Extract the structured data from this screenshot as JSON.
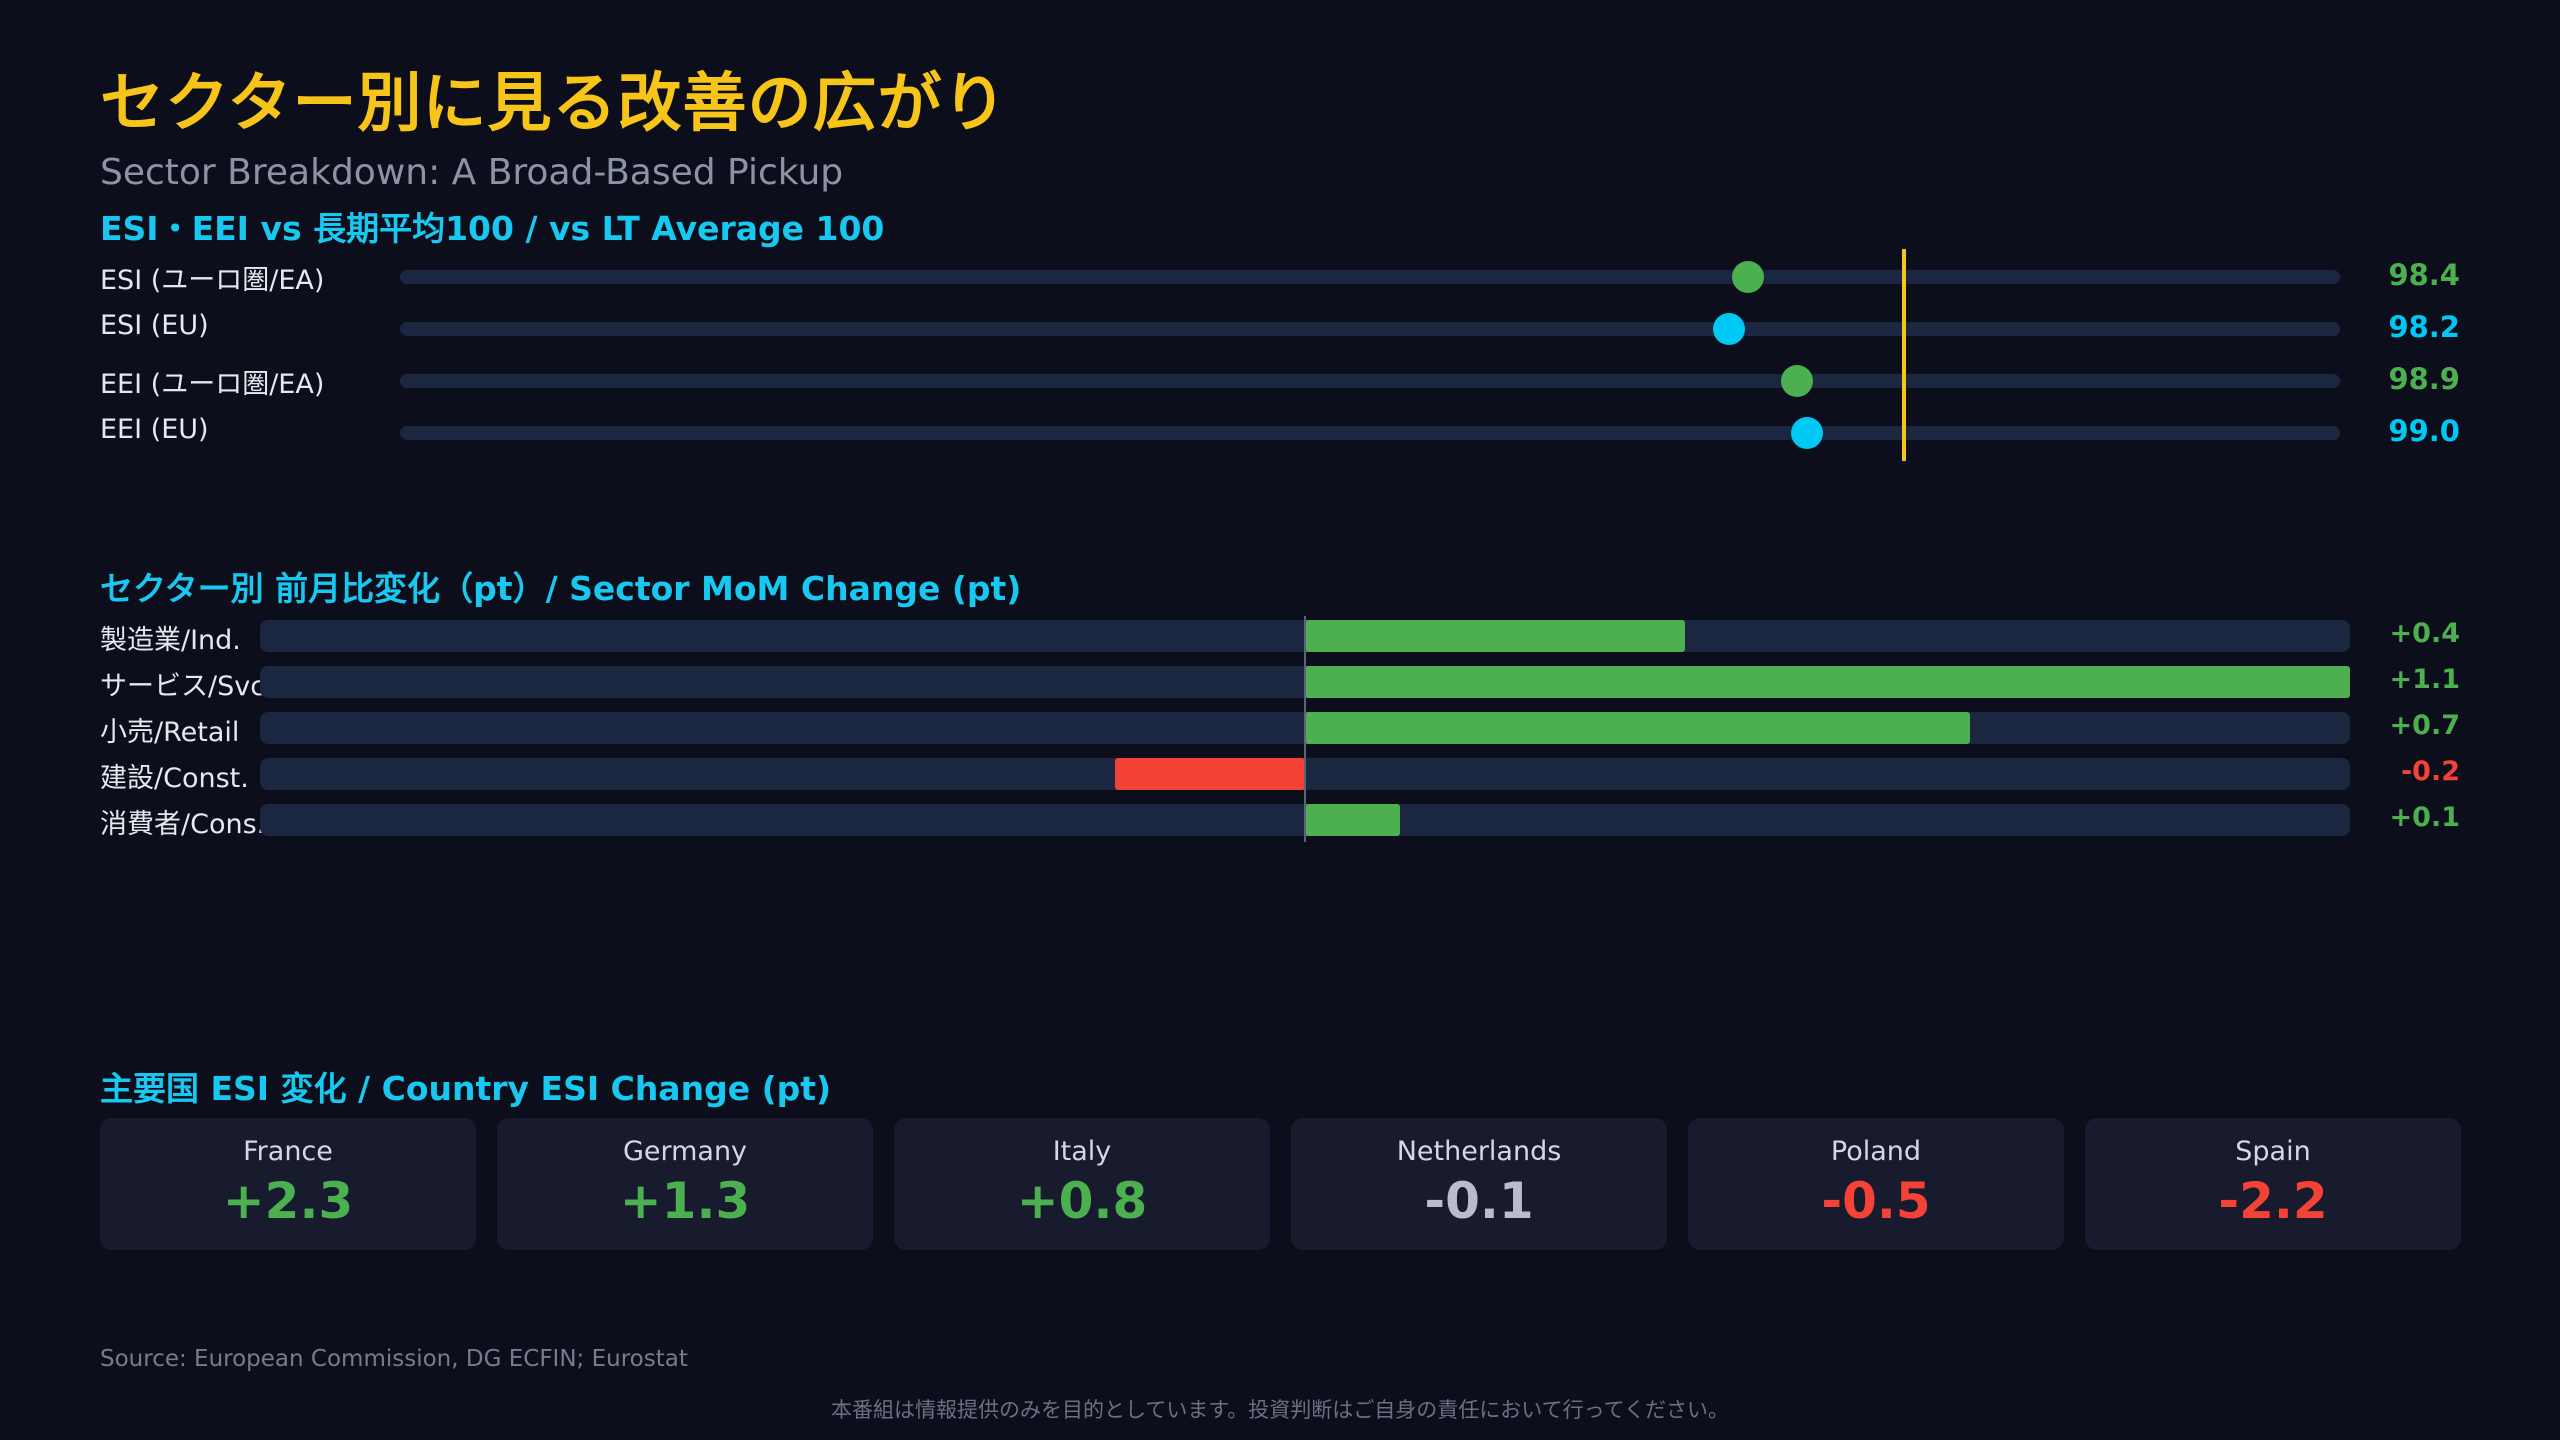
{
  "title": "セクター別に見る改善の広がり",
  "subtitle": "Sector Breakdown: A Broad-Based Pickup",
  "colors": {
    "green": "#4caf50",
    "cyan": "#00c8f5",
    "red": "#f44336",
    "neutral": "#b8bccc",
    "reference": "#f7c41a"
  },
  "chart_data": [
    {
      "type": "dot",
      "title": "ESI・EEI vs 長期平均100 / vs LT Average 100",
      "reference_value": 100,
      "xlim": [
        84.5,
        104.5
      ],
      "rows": [
        {
          "label": "ESI (ユーロ圏/EA)",
          "value": 98.4,
          "value_text": "98.4",
          "color": "#4caf50"
        },
        {
          "label": "ESI (EU)",
          "value": 98.2,
          "value_text": "98.2",
          "color": "#00c8f5"
        },
        {
          "label": "EEI (ユーロ圏/EA)",
          "value": 98.9,
          "value_text": "98.9",
          "color": "#4caf50"
        },
        {
          "label": "EEI (EU)",
          "value": 99.0,
          "value_text": "99.0",
          "color": "#00c8f5"
        }
      ]
    },
    {
      "type": "bar",
      "title": "セクター別 前月比変化（pt）/ Sector MoM Change (pt)",
      "xlim": [
        -1.1,
        1.1
      ],
      "categories": [
        "製造業/Ind.",
        "サービス/Svc",
        "小売/Retail",
        "建設/Const.",
        "消費者/Cons."
      ],
      "values": [
        0.4,
        1.1,
        0.7,
        -0.2,
        0.1
      ],
      "value_labels": [
        "+0.4",
        "+1.1",
        "+0.7",
        "-0.2",
        "+0.1"
      ]
    },
    {
      "type": "table",
      "title": "主要国 ESI 変化 / Country ESI Change (pt)",
      "countries": [
        {
          "name": "France",
          "value": 2.3,
          "value_text": "+2.3",
          "color": "#4caf50"
        },
        {
          "name": "Germany",
          "value": 1.3,
          "value_text": "+1.3",
          "color": "#4caf50"
        },
        {
          "name": "Italy",
          "value": 0.8,
          "value_text": "+0.8",
          "color": "#4caf50"
        },
        {
          "name": "Netherlands",
          "value": -0.1,
          "value_text": "-0.1",
          "color": "#b8bccc"
        },
        {
          "name": "Poland",
          "value": -0.5,
          "value_text": "-0.5",
          "color": "#f44336"
        },
        {
          "name": "Spain",
          "value": -2.2,
          "value_text": "-2.2",
          "color": "#f44336"
        }
      ]
    }
  ],
  "source": "Source: European Commission, DG ECFIN; Eurostat",
  "disclaimer": "本番組は情報提供のみを目的としています。投資判断はご自身の責任において行ってください。"
}
